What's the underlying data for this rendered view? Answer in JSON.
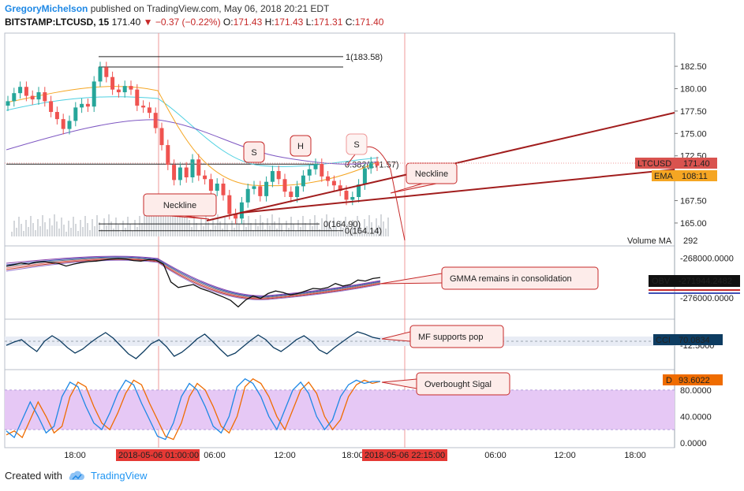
{
  "header": {
    "author": "GregoryMichelson",
    "published_text": "published on TradingView.com, May 06, 2018 20:21 EDT",
    "symbol": "BITSTAMP:LTCUSD, 15",
    "last": "171.40",
    "change": "▼ −0.37 (−0.22%)",
    "o_label": "O:",
    "o": "171.43",
    "h_label": "H:",
    "h": "171.43",
    "l_label": "L:",
    "l": "171.31",
    "c_label": "C:",
    "c": "171.40"
  },
  "footer": {
    "created_with": "Created with",
    "brand": "TradingView",
    "logo_icon": "tradingview-cloud-icon"
  },
  "colors": {
    "accent_red": "#c62828",
    "ema": "#f57c00",
    "obv": "#111111",
    "cci": "#0d3c61",
    "stoch_d": "#ef6c00",
    "fill_band": "#e6c8f5"
  },
  "chart_data": [
    {
      "type": "candlestick",
      "name": "price",
      "y_ticks": [
        "182.50",
        "180.00",
        "177.50",
        "175.00",
        "172.50",
        "167.50",
        "165.00"
      ],
      "ylim": [
        163.5,
        185.5
      ],
      "x_ticks": [
        "18:00",
        "06:00",
        "12:00",
        "18:00",
        "06:00",
        "12:00",
        "18:00"
      ],
      "x_highlight_labels": [
        "2018-05-06 01:00:00",
        "2018-05-06 22:15:00"
      ],
      "last_price_label": "LTCUSD",
      "last_price": "171.40",
      "ema_label": "EMA",
      "ema_value": "108:11",
      "volume_ma_label": "Volume MA",
      "volume_ma_value": "292",
      "fib_levels": [
        {
          "label": "1(183.58)",
          "value": 183.58
        },
        {
          "label": "0.382(171.57)",
          "value": 171.57
        },
        {
          "label": "0(164.90)",
          "value": 164.9
        },
        {
          "label": "0(164.14)",
          "value": 164.14
        }
      ],
      "pattern_labels": [
        "S",
        "H",
        "S"
      ],
      "annotations": [
        "Neckline",
        "Neckline"
      ],
      "closes": [
        178.6,
        179.5,
        180.2,
        179.2,
        178.8,
        179.6,
        178.6,
        177.4,
        176.6,
        175.5,
        176.4,
        177.9,
        178.3,
        178.0,
        180.8,
        182.4,
        181.3,
        179.9,
        179.6,
        180.3,
        179.9,
        178.1,
        177.9,
        177.3,
        175.6,
        173.7,
        171.5,
        169.8,
        171.2,
        170.1,
        172.1,
        170.3,
        169.9,
        168.6,
        169.4,
        168.1,
        166.0,
        165.5,
        167.3,
        168.8,
        169.1,
        168.0,
        169.6,
        170.8,
        169.9,
        168.5,
        167.9,
        169.1,
        170.3,
        171.0,
        171.6,
        170.2,
        169.7,
        169.2,
        168.6,
        167.6,
        167.9,
        169.3,
        171.1,
        171.8,
        171.4
      ]
    },
    {
      "type": "line",
      "name": "OBV",
      "label": "OBV",
      "value": "-271944.2482",
      "y_ticks": [
        "-268000.0000",
        "-276000.0000"
      ],
      "ylim": [
        -279000,
        -266500
      ],
      "annotation": "GMMA remains in consolidation",
      "values": [
        -269600,
        -269300,
        -269000,
        -269200,
        -268800,
        -268700,
        -268900,
        -269100,
        -269600,
        -269200,
        -268900,
        -268700,
        -268600,
        -268400,
        -268200,
        -268100,
        -268200,
        -268500,
        -268600,
        -268300,
        -268400,
        -269200,
        -272800,
        -273900,
        -273600,
        -273300,
        -274100,
        -274600,
        -275200,
        -275800,
        -276500,
        -277800,
        -276400,
        -275600,
        -276100,
        -275100,
        -274600,
        -274900,
        -275400,
        -275100,
        -274600,
        -274100,
        -274200,
        -273900,
        -273100,
        -273600,
        -273300,
        -272400,
        -272600,
        -272100,
        -271900
      ]
    },
    {
      "type": "line",
      "name": "CCI",
      "label": "CCI",
      "value": "70.0834",
      "y_ticks": [
        "-12.5000"
      ],
      "ylim": [
        -250,
        250
      ],
      "annotation": "MF supports pop",
      "values": [
        -12,
        30,
        60,
        -20,
        -90,
        40,
        110,
        50,
        -40,
        -110,
        -60,
        20,
        90,
        150,
        80,
        -20,
        -120,
        -180,
        -90,
        10,
        60,
        -30,
        -150,
        -100,
        -20,
        70,
        130,
        40,
        -60,
        -150,
        -110,
        -30,
        50,
        120,
        60,
        -40,
        -90,
        -20,
        60,
        110,
        40,
        -70,
        -120,
        -40,
        30,
        100,
        160,
        130,
        90,
        70
      ]
    },
    {
      "type": "line",
      "name": "Stochastic",
      "label": "D",
      "value": "93.6022",
      "y_ticks": [
        "80.0000",
        "40.0000",
        "0.0000"
      ],
      "ylim": [
        -5,
        105
      ],
      "annotation": "Overbought Sigal",
      "values": [
        12,
        18,
        8,
        35,
        62,
        40,
        15,
        25,
        70,
        92,
        85,
        55,
        30,
        20,
        45,
        75,
        95,
        88,
        60,
        35,
        10,
        5,
        30,
        70,
        90,
        80,
        55,
        25,
        15,
        40,
        85,
        97,
        90,
        70,
        40,
        20,
        50,
        80,
        92,
        75,
        40,
        20,
        35,
        70,
        88,
        95,
        90,
        93
      ]
    }
  ]
}
